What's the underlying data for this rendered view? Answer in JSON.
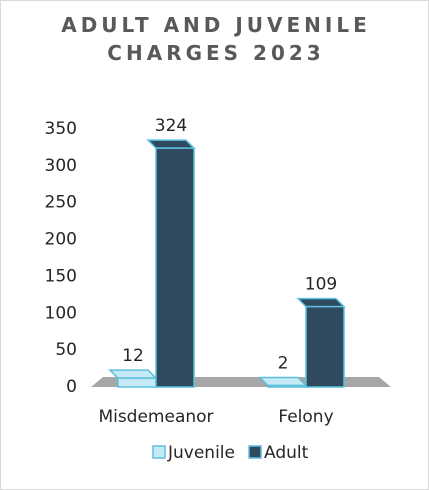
{
  "chart_data": {
    "type": "bar3d",
    "title": "ADULT AND JUVENILE CHARGES 2023",
    "categories": [
      "Misdemeanor",
      "Felony"
    ],
    "series": [
      {
        "name": "Juvenile",
        "color": "#c6e9f6",
        "values": [
          12,
          2
        ]
      },
      {
        "name": "Adult",
        "color": "#2f4a5e",
        "values": [
          324,
          109
        ]
      }
    ],
    "ylim": [
      0,
      350
    ],
    "yticks": [
      0,
      50,
      100,
      150,
      200,
      250,
      300,
      350
    ],
    "legend": "bottom"
  }
}
